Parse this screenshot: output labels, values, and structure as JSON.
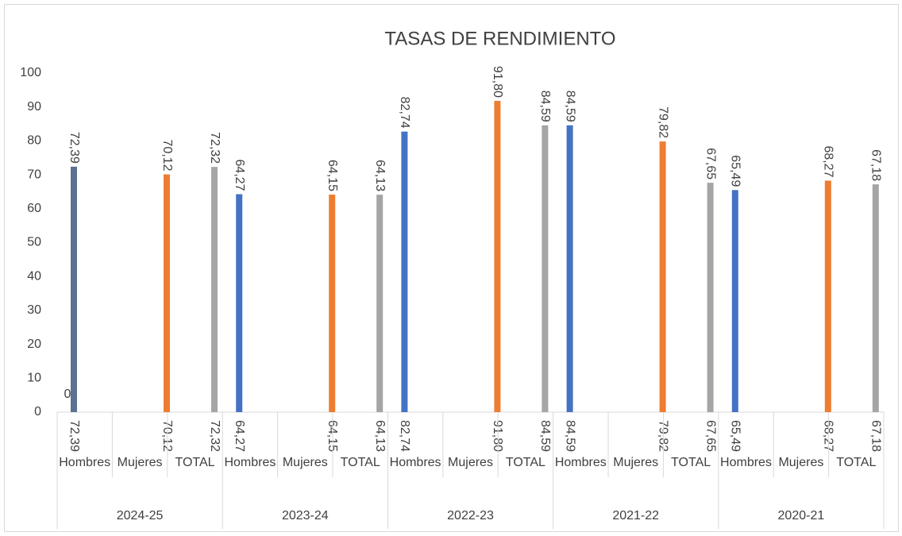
{
  "chart_data": {
    "type": "bar",
    "title": "TASAS DE RENDIMIENTO",
    "categories": [
      "72,39",
      "70,12",
      "72,32",
      "64,27",
      "64,15",
      "64,13",
      "82,74",
      "91,80",
      "84,59",
      "84,59",
      "79,82",
      "67,65",
      "65,49",
      "68,27",
      "67,18"
    ],
    "sublabels": [
      "Hombres",
      "Mujeres",
      "TOTAL",
      "Hombres",
      "Mujeres",
      "TOTAL",
      "Hombres",
      "Mujeres",
      "TOTAL",
      "Hombres",
      "Mujeres",
      "TOTAL",
      "Hombres",
      "Mujeres",
      "TOTAL"
    ],
    "groups": [
      "2024-25",
      "2023-24",
      "2022-23",
      "2021-22",
      "2020-21"
    ],
    "values": [
      72.39,
      70.12,
      72.32,
      64.27,
      64.15,
      64.13,
      82.74,
      91.8,
      84.59,
      84.59,
      79.82,
      67.65,
      65.49,
      68.27,
      67.18
    ],
    "value_labels": [
      "72,39",
      "70,12",
      "72,32",
      "64,27",
      "64,15",
      "64,13",
      "82,74",
      "91,80",
      "84,59",
      "84,59",
      "79,82",
      "67,65",
      "65,49",
      "68,27",
      "67,18"
    ],
    "colors": [
      "#5b7290",
      "#ed7d31",
      "#a5a5a5",
      "#4472c4",
      "#ed7d31",
      "#a5a5a5",
      "#4472c4",
      "#ed7d31",
      "#a5a5a5",
      "#4472c4",
      "#ed7d31",
      "#a5a5a5",
      "#4472c4",
      "#ed7d31",
      "#a5a5a5"
    ],
    "annotations": [
      "0"
    ],
    "ylim": [
      0,
      100
    ],
    "yticks": [
      0,
      10,
      20,
      30,
      40,
      50,
      60,
      70,
      80,
      90,
      100
    ],
    "grid": false
  }
}
